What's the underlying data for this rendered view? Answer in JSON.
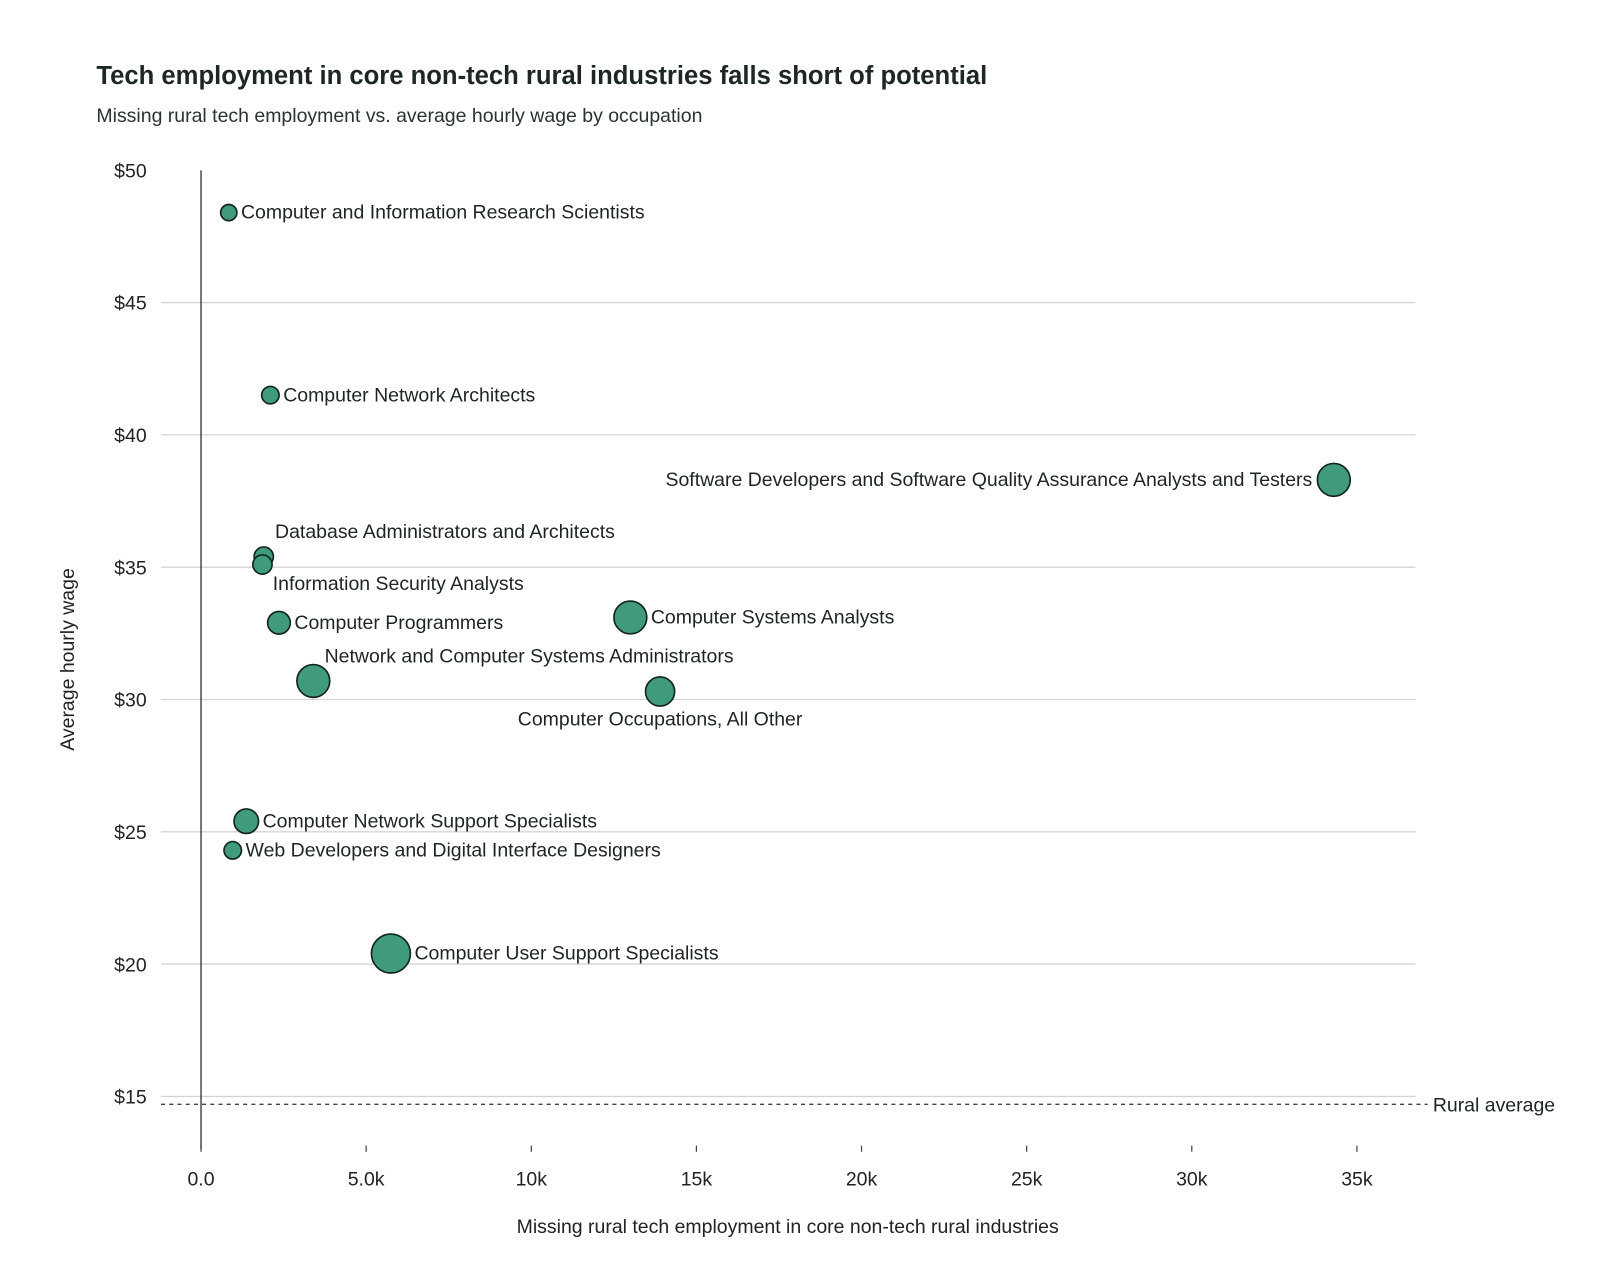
{
  "chart_data": {
    "type": "scatter",
    "title": "Tech employment in core non-tech rural industries falls short of potential",
    "subtitle": "Missing rural tech employment vs. average hourly wage by occupation",
    "xlabel": "Missing rural tech employment in core non-tech rural industries",
    "ylabel": "Average hourly wage",
    "xlim": [
      -1200,
      37000
    ],
    "ylim": [
      13,
      50
    ],
    "grid": "horizontal",
    "x_ticks": [
      0,
      5000,
      10000,
      15000,
      20000,
      25000,
      30000,
      35000
    ],
    "x_tick_labels": [
      "0.0",
      "5.0k",
      "10k",
      "15k",
      "20k",
      "25k",
      "30k",
      "35k"
    ],
    "y_ticks": [
      15,
      20,
      25,
      30,
      35,
      40,
      45,
      50
    ],
    "y_tick_labels": [
      "$15",
      "$20",
      "$25",
      "$30",
      "$35",
      "$40",
      "$45",
      "$50"
    ],
    "reference_line": {
      "label": "Rural average",
      "y": 14.7,
      "style": "dashed"
    },
    "bubble_color": "#3f9b7b",
    "points": [
      {
        "label": "Computer and Information Research Scientists",
        "x": 840,
        "y": 48.4,
        "size": 0.26,
        "label_pos": "right"
      },
      {
        "label": "Computer Network Architects",
        "x": 2100,
        "y": 41.5,
        "size": 0.3,
        "label_pos": "right"
      },
      {
        "label": "Software Developers and Software Quality Assurance Analysts and Testers",
        "x": 34300,
        "y": 38.3,
        "size": 0.8,
        "label_pos": "left"
      },
      {
        "label": "Database Administrators and Architects",
        "x": 1900,
        "y": 35.4,
        "size": 0.36,
        "label_pos": "above"
      },
      {
        "label": "Information Security Analysts",
        "x": 1860,
        "y": 35.1,
        "size": 0.36,
        "label_pos": "below"
      },
      {
        "label": "Computer Programmers",
        "x": 2360,
        "y": 32.9,
        "size": 0.47,
        "label_pos": "right"
      },
      {
        "label": "Computer Systems Analysts",
        "x": 13000,
        "y": 33.1,
        "size": 0.8,
        "label_pos": "right"
      },
      {
        "label": "Network and Computer Systems Administrators",
        "x": 3400,
        "y": 30.7,
        "size": 0.8,
        "label_pos": "above"
      },
      {
        "label": "Computer Occupations, All Other",
        "x": 13900,
        "y": 30.3,
        "size": 0.68,
        "label_pos": "below"
      },
      {
        "label": "Computer Network Support Specialists",
        "x": 1370,
        "y": 25.4,
        "size": 0.53,
        "label_pos": "right"
      },
      {
        "label": "Web Developers and Digital Interface Designers",
        "x": 960,
        "y": 24.3,
        "size": 0.3,
        "label_pos": "right"
      },
      {
        "label": "Computer User Support Specialists",
        "x": 5750,
        "y": 20.4,
        "size": 1.0,
        "label_pos": "right"
      }
    ]
  }
}
